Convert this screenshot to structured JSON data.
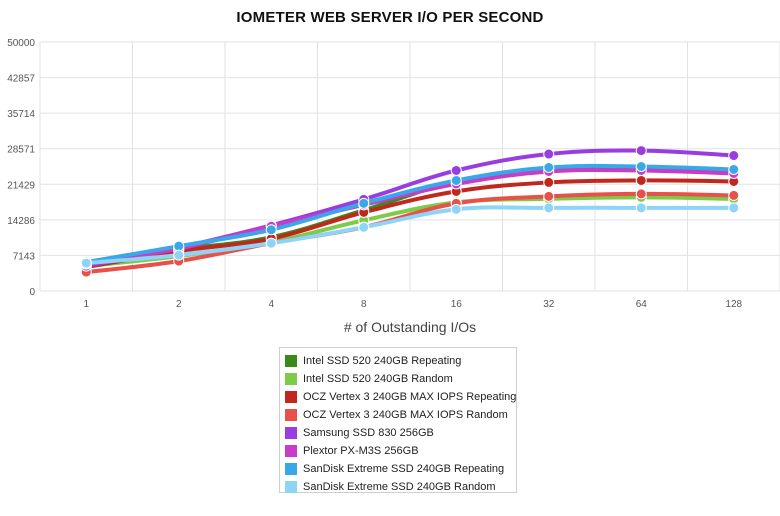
{
  "chart_data": {
    "type": "line",
    "title": "IOMETER WEB SERVER I/O PER SECOND",
    "xlabel": "# of Outstanding I/Os",
    "ylabel": "",
    "x": [
      "1",
      "2",
      "4",
      "8",
      "16",
      "32",
      "64",
      "128"
    ],
    "y_ticks": [
      "0",
      "7143",
      "14286",
      "21429",
      "28571",
      "35714",
      "42857",
      "50000"
    ],
    "ylim": [
      0,
      50000
    ],
    "grid": true,
    "legend_position": "bottom",
    "series": [
      {
        "name": "Intel SSD 520 240GB Repeating",
        "color": "#3a8a1a",
        "values": [
          5300,
          8300,
          10800,
          16200,
          22000,
          24500,
          24900,
          24100
        ]
      },
      {
        "name": "Intel SSD 520 240GB Random",
        "color": "#7ecb4a",
        "values": [
          5000,
          7000,
          9800,
          14200,
          17800,
          18500,
          18800,
          18500
        ]
      },
      {
        "name": "OCZ Vertex 3 240GB MAX IOPS Repeating",
        "color": "#c0281e",
        "values": [
          4800,
          8000,
          10500,
          15800,
          20000,
          21800,
          22200,
          22000
        ]
      },
      {
        "name": "OCZ Vertex 3 240GB MAX IOPS Random",
        "color": "#e8504a",
        "values": [
          3800,
          6000,
          9600,
          12800,
          17600,
          19000,
          19500,
          19200
        ]
      },
      {
        "name": "Samsung SSD 830 256GB",
        "color": "#9a3de0",
        "values": [
          5000,
          8700,
          13200,
          18400,
          24200,
          27500,
          28200,
          27200
        ]
      },
      {
        "name": "Plextor PX-M3S 256GB",
        "color": "#c83cc8",
        "values": [
          5400,
          8500,
          13000,
          17300,
          21500,
          24000,
          24200,
          23600
        ]
      },
      {
        "name": "SanDisk Extreme SSD 240GB Repeating",
        "color": "#3aa8e8",
        "values": [
          5800,
          9000,
          12300,
          17600,
          22200,
          24800,
          25000,
          24400
        ]
      },
      {
        "name": "SanDisk Extreme SSD 240GB Random",
        "color": "#8dd4f8",
        "values": [
          5600,
          7200,
          9600,
          12800,
          16400,
          16700,
          16700,
          16700
        ]
      }
    ]
  }
}
